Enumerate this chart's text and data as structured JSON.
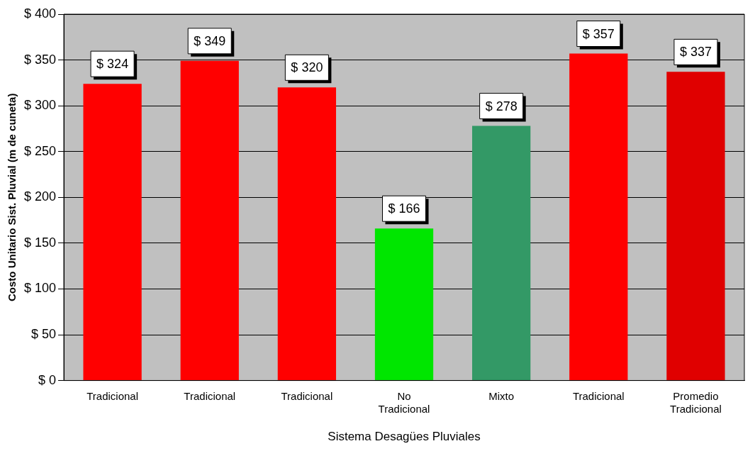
{
  "chart_data": {
    "type": "bar",
    "xlabel": "Sistema Desagües Pluviales",
    "ylabel": "Costo Unitario Sist. Pluvial (m de cuneta)",
    "categories": [
      "Tradicional",
      "Tradicional",
      "Tradicional",
      "No Tradicional",
      "Mixto",
      "Tradicional",
      "Promedio Tradicional"
    ],
    "values": [
      324,
      349,
      320,
      166,
      278,
      357,
      337
    ],
    "colors": [
      "#ff0000",
      "#ff0000",
      "#ff0000",
      "#00e600",
      "#339966",
      "#ff0000",
      "#e00000"
    ],
    "value_labels": [
      "$ 324",
      "$ 349",
      "$ 320",
      "$ 166",
      "$ 278",
      "$ 357",
      "$ 337"
    ],
    "ylim": [
      0,
      400
    ],
    "yticks": [
      {
        "value": 0,
        "label": "$ 0"
      },
      {
        "value": 50,
        "label": "$ 50"
      },
      {
        "value": 100,
        "label": "$ 100"
      },
      {
        "value": 150,
        "label": "$ 150"
      },
      {
        "value": 200,
        "label": "$ 200"
      },
      {
        "value": 250,
        "label": "$ 250"
      },
      {
        "value": 300,
        "label": "$ 300"
      },
      {
        "value": 350,
        "label": "$ 350"
      },
      {
        "value": 400,
        "label": "$ 400"
      }
    ],
    "grid": "y",
    "legend": false
  }
}
